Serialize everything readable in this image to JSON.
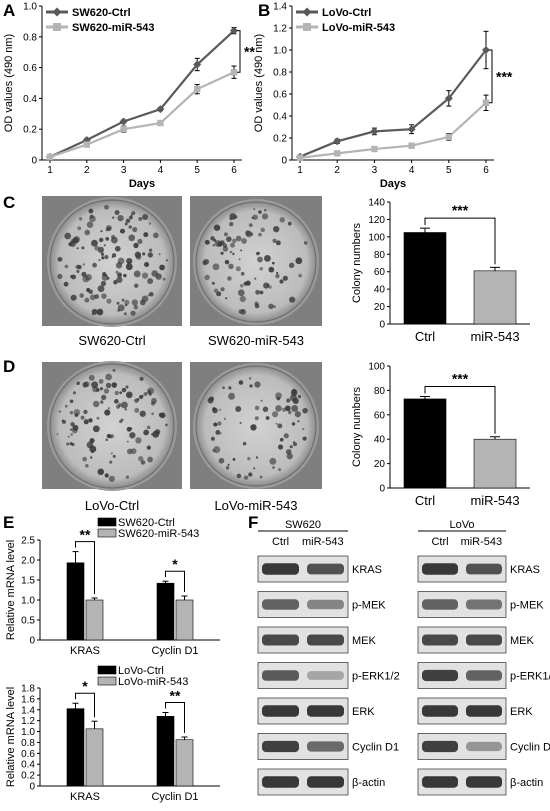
{
  "panel_labels": {
    "A": "A",
    "B": "B",
    "C": "C",
    "D": "D",
    "E": "E",
    "F": "F"
  },
  "chart_data": [
    {
      "id": "A",
      "type": "line",
      "x": [
        1,
        2,
        3,
        4,
        5,
        6
      ],
      "xlabel": "Days",
      "ylabel": "OD values (490 nm)",
      "ylim": [
        0,
        1.0
      ],
      "yticks": [
        0,
        0.2,
        0.4,
        0.6,
        0.8,
        1.0
      ],
      "series": [
        {
          "name": "SW620-Ctrl",
          "values": [
            0.02,
            0.13,
            0.25,
            0.33,
            0.62,
            0.84
          ],
          "err": [
            0.01,
            0.01,
            0.01,
            0.01,
            0.04,
            0.02
          ],
          "color": "#5a5a5a",
          "marker": "diamond"
        },
        {
          "name": "SW620-miR-543",
          "values": [
            0.02,
            0.1,
            0.2,
            0.24,
            0.46,
            0.57
          ],
          "err": [
            0.01,
            0.01,
            0.02,
            0.01,
            0.03,
            0.04
          ],
          "color": "#b4b4b4",
          "marker": "square"
        }
      ],
      "significance": "**",
      "legend": "top-left"
    },
    {
      "id": "B",
      "type": "line",
      "x": [
        1,
        2,
        3,
        4,
        5,
        6
      ],
      "xlabel": "Days",
      "ylabel": "OD values (490 nm)",
      "ylim": [
        0,
        1.4
      ],
      "yticks": [
        0,
        0.2,
        0.4,
        0.6,
        0.8,
        1.0,
        1.2,
        1.4
      ],
      "series": [
        {
          "name": "LoVo-Ctrl",
          "values": [
            0.03,
            0.17,
            0.26,
            0.28,
            0.56,
            1.0
          ],
          "err": [
            0.01,
            0.02,
            0.03,
            0.04,
            0.07,
            0.17
          ],
          "color": "#5a5a5a",
          "marker": "diamond"
        },
        {
          "name": "LoVo-miR-543",
          "values": [
            0.02,
            0.06,
            0.1,
            0.13,
            0.21,
            0.52
          ],
          "err": [
            0.01,
            0.01,
            0.01,
            0.01,
            0.03,
            0.07
          ],
          "color": "#b4b4b4",
          "marker": "square"
        }
      ],
      "significance": "***",
      "legend": "top-left"
    },
    {
      "id": "C",
      "type": "bar",
      "categories": [
        "Ctrl",
        "miR-543"
      ],
      "values": [
        105,
        61
      ],
      "err": [
        5,
        4
      ],
      "colors": [
        "#000000",
        "#b4b4b4"
      ],
      "ylabel": "Colony numbers",
      "ylim": [
        0,
        140
      ],
      "yticks": [
        0,
        20,
        40,
        60,
        80,
        100,
        120,
        140
      ],
      "significance": "***"
    },
    {
      "id": "D",
      "type": "bar",
      "categories": [
        "Ctrl",
        "miR-543"
      ],
      "values": [
        73,
        40
      ],
      "err": [
        2,
        2
      ],
      "colors": [
        "#000000",
        "#b4b4b4"
      ],
      "ylabel": "Colony numbers",
      "ylim": [
        0,
        100
      ],
      "yticks": [
        0,
        20,
        40,
        60,
        80,
        100
      ],
      "significance": "***"
    },
    {
      "id": "E1",
      "type": "bar",
      "categories": [
        "KRAS",
        "Cyclin D1"
      ],
      "ylabel": "Relative mRNA level",
      "ylim": [
        0,
        2.5
      ],
      "yticks": [
        0,
        0.5,
        1.0,
        1.5,
        2.0,
        2.5
      ],
      "series": [
        {
          "name": "SW620-Ctrl",
          "values": [
            1.93,
            1.42
          ],
          "err": [
            0.28,
            0.05
          ],
          "color": "#000000"
        },
        {
          "name": "SW620-miR-543",
          "values": [
            1.0,
            1.0
          ],
          "err": [
            0.05,
            0.1
          ],
          "color": "#b4b4b4"
        }
      ],
      "significance": [
        "**",
        "*"
      ],
      "legend": "top"
    },
    {
      "id": "E2",
      "type": "bar",
      "categories": [
        "KRAS",
        "Cyclin D1"
      ],
      "ylabel": "Relative mRNA level",
      "ylim": [
        0,
        1.8
      ],
      "yticks": [
        0,
        0.2,
        0.4,
        0.6,
        0.8,
        1.0,
        1.2,
        1.4,
        1.6,
        1.8
      ],
      "series": [
        {
          "name": "LoVo-Ctrl",
          "values": [
            1.42,
            1.28
          ],
          "err": [
            0.1,
            0.07
          ],
          "color": "#000000"
        },
        {
          "name": "LoVo-miR-543",
          "values": [
            1.05,
            0.85
          ],
          "err": [
            0.14,
            0.05
          ],
          "color": "#b4b4b4"
        }
      ],
      "significance": [
        "*",
        "**"
      ],
      "legend": "top"
    }
  ],
  "colony_images": {
    "C": {
      "left": "SW620-Ctrl",
      "right": "SW620-miR-543"
    },
    "D": {
      "left": "LoVo-Ctrl",
      "right": "LoVo-miR-543"
    }
  },
  "blot": {
    "groups": [
      {
        "title": "SW620",
        "lanes": [
          "Ctrl",
          "miR-543"
        ]
      },
      {
        "title": "LoVo",
        "lanes": [
          "Ctrl",
          "miR-543"
        ]
      }
    ],
    "rows": [
      "KRAS",
      "p-MEK",
      "MEK",
      "p-ERK1/2",
      "ERK",
      "Cyclin D1",
      "β-actin"
    ],
    "intensity": {
      "SW620": [
        [
          0.85,
          0.7
        ],
        [
          0.6,
          0.4
        ],
        [
          0.75,
          0.75
        ],
        [
          0.65,
          0.2
        ],
        [
          0.85,
          0.85
        ],
        [
          0.8,
          0.55
        ],
        [
          0.85,
          0.85
        ]
      ],
      "LoVo": [
        [
          0.85,
          0.7
        ],
        [
          0.6,
          0.5
        ],
        [
          0.75,
          0.75
        ],
        [
          0.8,
          0.6
        ],
        [
          0.85,
          0.85
        ],
        [
          0.8,
          0.3
        ],
        [
          0.85,
          0.85
        ]
      ]
    }
  }
}
